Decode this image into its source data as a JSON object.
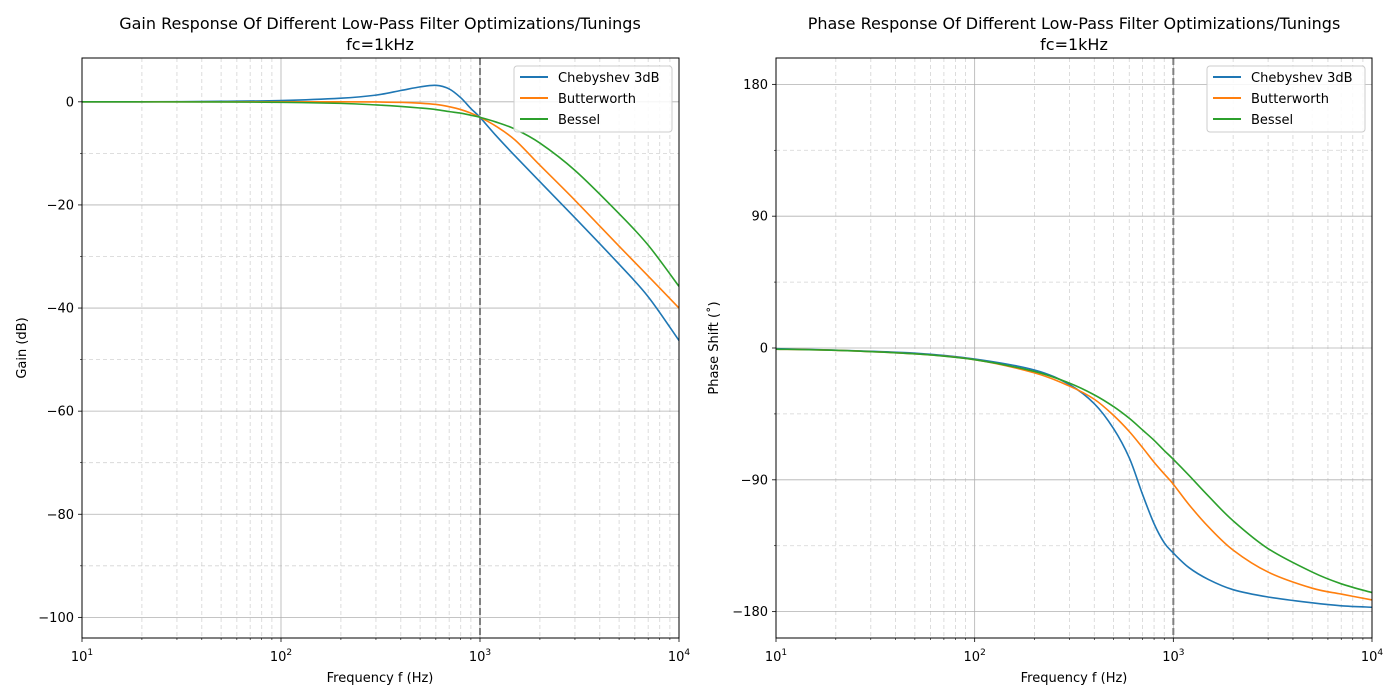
{
  "chart_data": [
    {
      "type": "line",
      "title": "Gain Response Of Different Low-Pass Filter Optimizations/Tunings",
      "subtitle": "fc=1kHz",
      "xlabel": "Frequency f (Hz)",
      "ylabel": "Gain (dB)",
      "xscale": "log",
      "xlim": [
        10,
        10000
      ],
      "ylim": [
        -104,
        8.5
      ],
      "x_ticks": [
        {
          "value": 10,
          "base": "10",
          "exp": "1"
        },
        {
          "value": 100,
          "base": "10",
          "exp": "2"
        },
        {
          "value": 1000,
          "base": "10",
          "exp": "3"
        },
        {
          "value": 10000,
          "base": "10",
          "exp": "4"
        }
      ],
      "y_ticks": [
        {
          "value": 0,
          "label": "0"
        },
        {
          "value": -20,
          "label": "−20"
        },
        {
          "value": -40,
          "label": "−40"
        },
        {
          "value": -60,
          "label": "−60"
        },
        {
          "value": -80,
          "label": "−80"
        },
        {
          "value": -100,
          "label": "−100"
        }
      ],
      "y_minor_ticks": [
        -10,
        -30,
        -50,
        -70,
        -90
      ],
      "grid": true,
      "cutoff_line_x": 1000,
      "legend": "top-right",
      "series": [
        {
          "name": "Chebyshev 3dB",
          "color": "#1f77b4",
          "x": [
            10,
            20,
            50,
            100,
            200,
            300,
            400,
            500,
            600,
            700,
            800,
            900,
            1000,
            1200,
            1500,
            2000,
            3000,
            5000,
            7000,
            10000
          ],
          "values": [
            0,
            0,
            0.1,
            0.25,
            0.7,
            1.3,
            2.2,
            2.9,
            3.2,
            2.5,
            0.8,
            -1.3,
            -3.0,
            -6.5,
            -10.5,
            -15.5,
            -22.5,
            -31.5,
            -37.8,
            -46.3
          ]
        },
        {
          "name": "Butterworth",
          "color": "#ff7f0e",
          "x": [
            10,
            50,
            100,
            200,
            300,
            400,
            500,
            600,
            700,
            800,
            900,
            1000,
            1200,
            1500,
            2000,
            3000,
            5000,
            7000,
            10000
          ],
          "values": [
            0,
            0,
            0,
            0,
            -0.03,
            -0.1,
            -0.26,
            -0.5,
            -0.94,
            -1.5,
            -2.2,
            -3.0,
            -4.7,
            -7.4,
            -12.3,
            -19.1,
            -28.0,
            -33.8,
            -40.0
          ]
        },
        {
          "name": "Bessel",
          "color": "#2ca02c",
          "x": [
            10,
            50,
            100,
            200,
            300,
            400,
            500,
            600,
            700,
            800,
            900,
            1000,
            1200,
            1500,
            2000,
            3000,
            5000,
            7000,
            10000
          ],
          "values": [
            0,
            -0.03,
            -0.1,
            -0.3,
            -0.6,
            -0.9,
            -1.2,
            -1.5,
            -1.9,
            -2.2,
            -2.6,
            -3.0,
            -3.9,
            -5.3,
            -8.0,
            -13.3,
            -21.7,
            -27.8,
            -35.8
          ]
        }
      ]
    },
    {
      "type": "line",
      "title": "Phase Response Of Different Low-Pass Filter Optimizations/Tunings",
      "subtitle": "fc=1kHz",
      "xlabel": "Frequency f (Hz)",
      "ylabel": "Phase Shift (˚)",
      "xscale": "log",
      "xlim": [
        10,
        10000
      ],
      "ylim": [
        -198,
        198
      ],
      "x_ticks": [
        {
          "value": 10,
          "base": "10",
          "exp": "1"
        },
        {
          "value": 100,
          "base": "10",
          "exp": "2"
        },
        {
          "value": 1000,
          "base": "10",
          "exp": "3"
        },
        {
          "value": 10000,
          "base": "10",
          "exp": "4"
        }
      ],
      "y_ticks": [
        {
          "value": 180,
          "label": "180"
        },
        {
          "value": 90,
          "label": "90"
        },
        {
          "value": 0,
          "label": "0"
        },
        {
          "value": -90,
          "label": "−90"
        },
        {
          "value": -180,
          "label": "−180"
        }
      ],
      "y_minor_ticks": [
        135,
        45,
        -45,
        -135
      ],
      "grid": true,
      "cutoff_line_x": 1000,
      "legend": "top-right",
      "series": [
        {
          "name": "Chebyshev 3dB",
          "color": "#1f77b4",
          "x": [
            10,
            20,
            50,
            100,
            200,
            300,
            400,
            500,
            600,
            700,
            800,
            900,
            1000,
            1200,
            1500,
            2000,
            3000,
            5000,
            7000,
            10000
          ],
          "values": [
            -0.5,
            -1.5,
            -3.5,
            -7.5,
            -15,
            -25,
            -38,
            -55,
            -75,
            -100,
            -120,
            -133,
            -140,
            -150,
            -158,
            -165,
            -170,
            -174,
            -176,
            -177
          ]
        },
        {
          "name": "Butterworth",
          "color": "#ff7f0e",
          "x": [
            10,
            20,
            50,
            100,
            200,
            300,
            400,
            500,
            600,
            700,
            800,
            900,
            1000,
            1200,
            1500,
            2000,
            3000,
            5000,
            7000,
            10000
          ],
          "values": [
            -0.8,
            -1.6,
            -4,
            -8,
            -17,
            -26,
            -35,
            -46,
            -57,
            -68,
            -78,
            -86,
            -93,
            -107,
            -122,
            -138,
            -153,
            -164,
            -168,
            -172
          ]
        },
        {
          "name": "Bessel",
          "color": "#2ca02c",
          "x": [
            10,
            20,
            50,
            100,
            200,
            300,
            400,
            500,
            600,
            700,
            800,
            900,
            1000,
            1200,
            1500,
            2000,
            3000,
            5000,
            7000,
            10000
          ],
          "values": [
            -0.8,
            -1.6,
            -4,
            -8,
            -16,
            -24,
            -32,
            -40,
            -48,
            -56,
            -63,
            -70,
            -76,
            -87,
            -101,
            -118,
            -137,
            -153,
            -161,
            -167
          ]
        }
      ]
    }
  ]
}
